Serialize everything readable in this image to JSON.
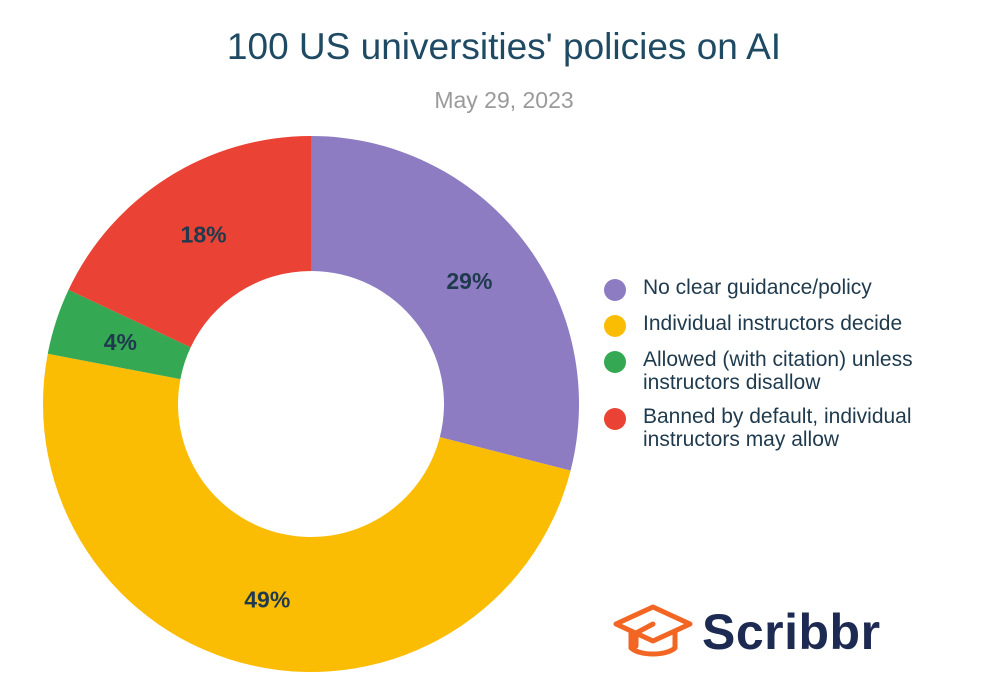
{
  "chart_data": {
    "type": "pie",
    "title": "100 US universities' policies on AI",
    "subtitle": "May 29, 2023",
    "legend_position": "right",
    "slices": [
      {
        "label": "No clear guidance/policy",
        "value": 29,
        "display": "29%",
        "color": "#8e7cc3"
      },
      {
        "label": "Individual instructors decide",
        "value": 49,
        "display": "49%",
        "color": "#fbbc04"
      },
      {
        "label": "Allowed (with citation) unless instructors disallow",
        "value": 4,
        "display": "4%",
        "color": "#34a853"
      },
      {
        "label": "Banned by default, individual instructors may allow",
        "value": 18,
        "display": "18%",
        "color": "#ea4335"
      }
    ]
  },
  "brand": {
    "name": "Scribbr",
    "icon": "graduation-cap-logo-icon",
    "icon_color": "#f26522",
    "text_color": "#1d2a52"
  },
  "label_color": "#1f3a4d"
}
